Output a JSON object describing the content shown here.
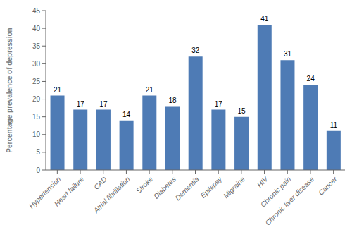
{
  "chart_data": {
    "type": "bar",
    "categories": [
      "Hypertension",
      "Heart failure",
      "CAD",
      "Atrial fibrillation",
      "Stroke",
      "Diabetes",
      "Dementia",
      "Epilepsy",
      "Migraine",
      "HIV",
      "Chronic pain",
      "Chronic liver disease",
      "Cancer"
    ],
    "values": [
      21,
      17,
      17,
      14,
      21,
      18,
      32,
      17,
      15,
      41,
      31,
      24,
      11
    ],
    "color": "#4e7bb5",
    "ylabel": "Percentage prevalence of depression",
    "ylim": [
      0,
      45
    ],
    "yticks": [
      0,
      5,
      10,
      15,
      20,
      25,
      30,
      35,
      40,
      45
    ],
    "grid": false,
    "data_labels": true
  }
}
